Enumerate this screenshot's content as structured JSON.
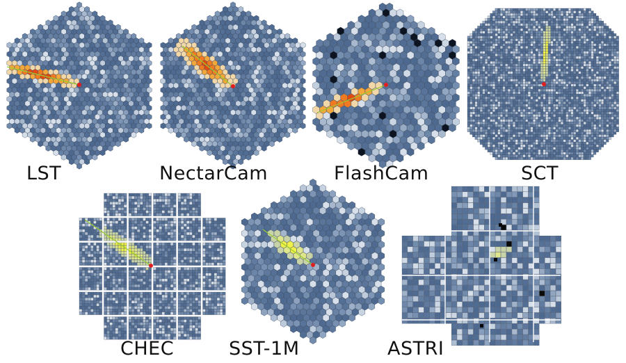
{
  "cameras": [
    {
      "label": "LST",
      "geometry": "hex-hexgrid"
    },
    {
      "label": "NectarCam",
      "geometry": "hex-hexgrid"
    },
    {
      "label": "FlashCam",
      "geometry": "hex-hexgrid"
    },
    {
      "label": "SCT",
      "geometry": "square-octagon"
    },
    {
      "label": "CHEC",
      "geometry": "square-modules"
    },
    {
      "label": "SST-1M",
      "geometry": "hex-hexgrid"
    },
    {
      "label": "ASTRI",
      "geometry": "square-cross"
    }
  ],
  "colors": {
    "background": "#ffffff",
    "pixel_low": "#46628a",
    "pixel_mid": "#7a93b4",
    "pixel_high": "#d7e0ea",
    "shower_hot": "#e24a10",
    "shower_warm": "#f3a63a",
    "shower_yellow": "#e8e85a",
    "axis_line": "#9acd32",
    "center_marker": "#e02020"
  }
}
